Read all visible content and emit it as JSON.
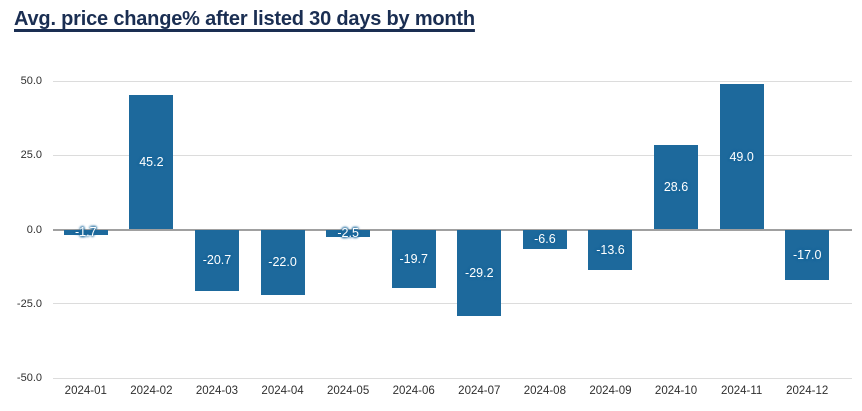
{
  "page": {
    "title": "Avg. price change% after listed 30 days by month"
  },
  "chart_data": {
    "type": "bar",
    "title": "Avg. price change% after listed 30 days by month",
    "categories": [
      "2024-01",
      "2024-02",
      "2024-03",
      "2024-04",
      "2024-05",
      "2024-06",
      "2024-07",
      "2024-08",
      "2024-09",
      "2024-10",
      "2024-11",
      "2024-12"
    ],
    "values": [
      -1.7,
      45.2,
      -20.7,
      -22.0,
      -2.5,
      -19.7,
      -29.2,
      -6.6,
      -13.6,
      28.6,
      49.0,
      -17.0
    ],
    "value_labels": [
      "-1.7",
      "45.2",
      "-20.7",
      "-22.0",
      "-2.5",
      "-19.7",
      "-29.2",
      "-6.6",
      "-13.6",
      "28.6",
      "49.0",
      "-17.0"
    ],
    "xlabel": "",
    "ylabel": "",
    "ylim": [
      -50,
      50
    ],
    "yticks": [
      50,
      25,
      0,
      -25,
      -50
    ],
    "ytick_labels": [
      "50.0",
      "25.0",
      "0.0",
      "-25.0",
      "-50.0"
    ],
    "grid": true,
    "legend": false,
    "bar_color": "#1d699c",
    "value_label_color": "#ffffff",
    "title_color": "#1a2e52",
    "axis_text_color": "#2f2f2f",
    "gridline_color": "#dcdcdc",
    "zero_line_color": "#a0a0a0"
  }
}
